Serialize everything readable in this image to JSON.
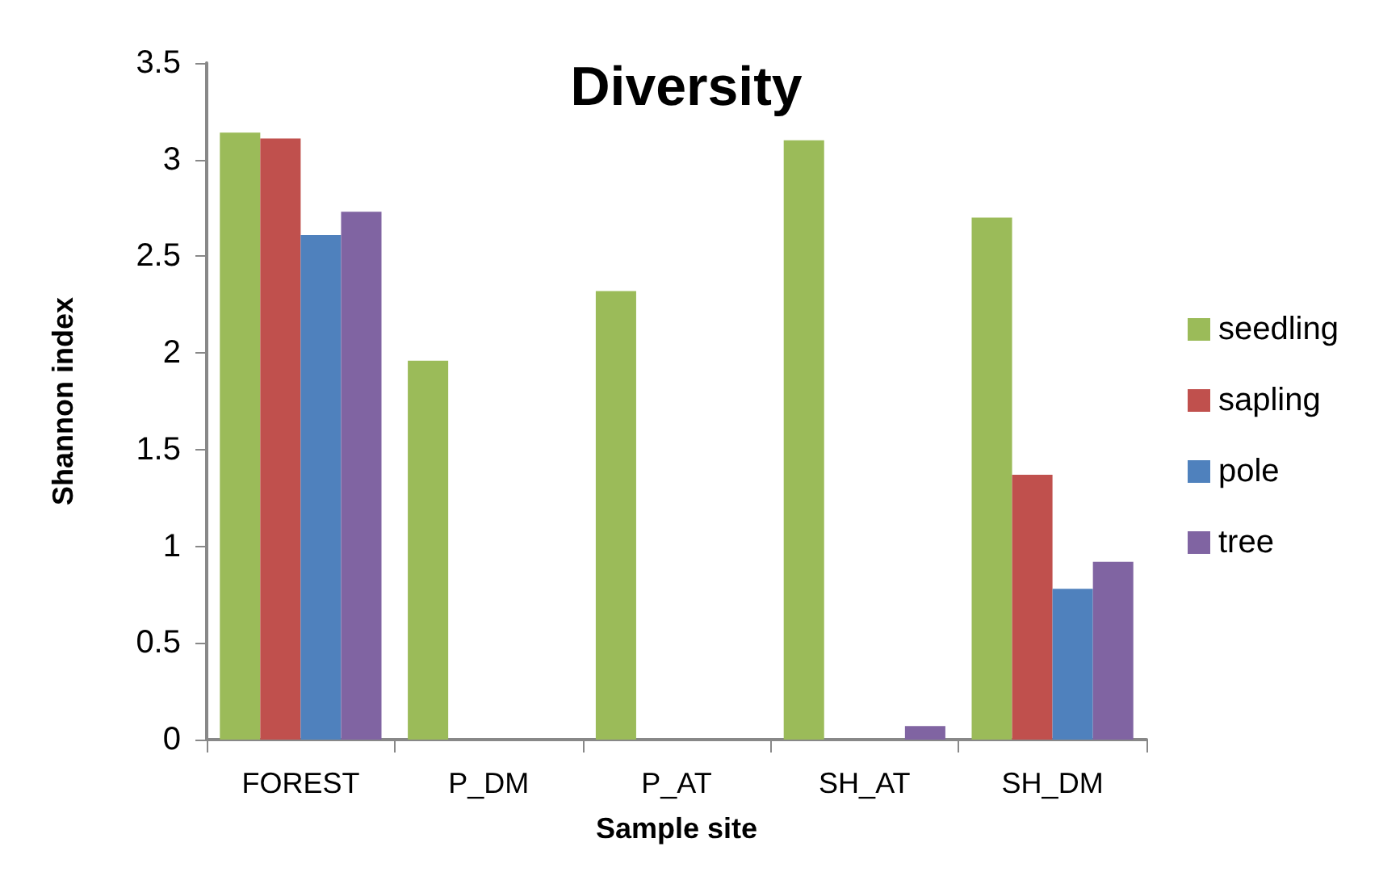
{
  "chart_data": {
    "type": "bar",
    "title": "Diversity",
    "xlabel": "Sample site",
    "ylabel": "Shannon index",
    "categories": [
      "FOREST",
      "P_DM",
      "P_AT",
      "SH_AT",
      "SH_DM"
    ],
    "series": [
      {
        "name": "seedling",
        "color": "#9bbb59",
        "values": [
          3.14,
          1.96,
          2.32,
          3.1,
          2.7
        ]
      },
      {
        "name": "sapling",
        "color": "#c0504d",
        "values": [
          3.11,
          null,
          null,
          null,
          1.37
        ]
      },
      {
        "name": "pole",
        "color": "#4f81bd",
        "values": [
          2.61,
          null,
          null,
          null,
          0.78
        ]
      },
      {
        "name": "tree",
        "color": "#8064a2",
        "values": [
          2.73,
          null,
          null,
          0.07,
          0.92
        ]
      }
    ],
    "ylim": [
      0,
      3.5
    ],
    "yticks": [
      0,
      0.5,
      1,
      1.5,
      2,
      2.5,
      3,
      3.5
    ],
    "grid": false,
    "legend": "right"
  }
}
